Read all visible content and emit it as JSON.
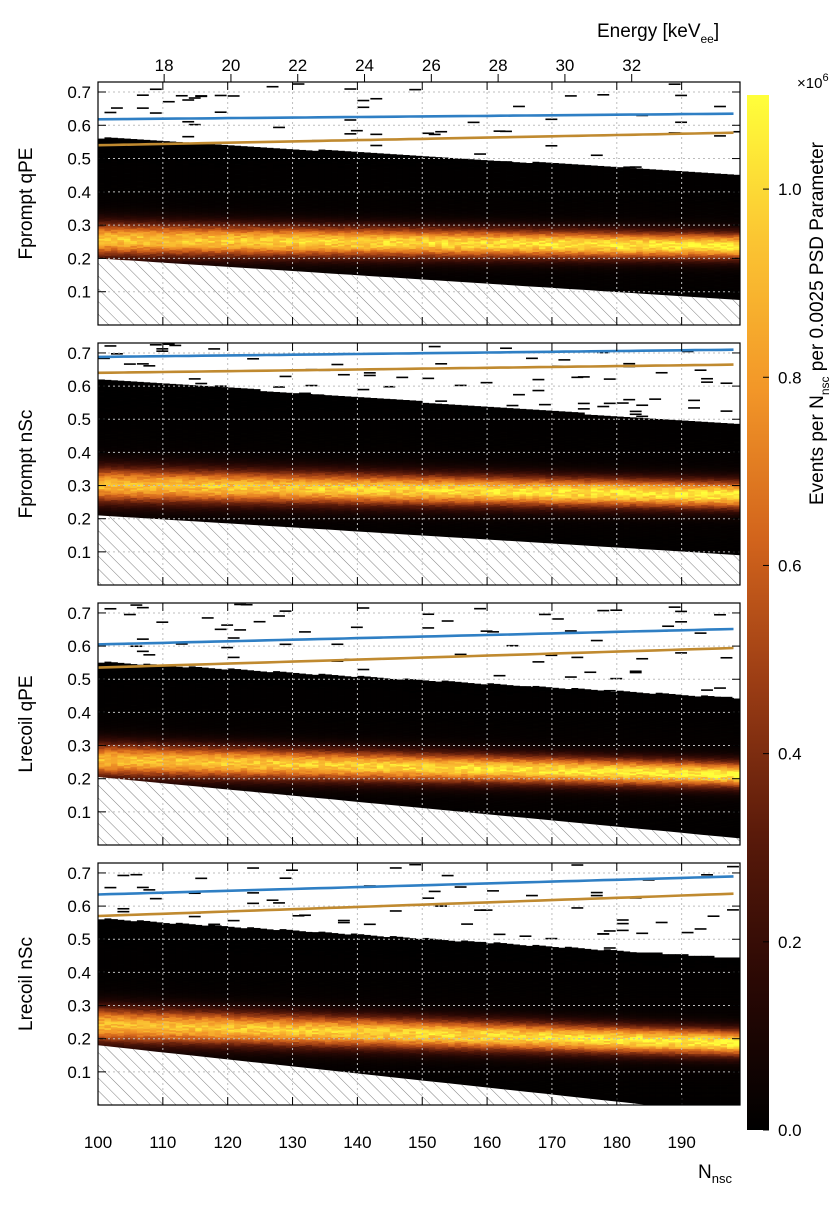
{
  "chart_data": {
    "type": "heatmap",
    "xlabel_main": "N",
    "xlabel_sub": "nsc",
    "xlim": [
      100,
      199
    ],
    "xticks": [
      100,
      110,
      120,
      130,
      140,
      150,
      160,
      170,
      180,
      190
    ],
    "top_axis": {
      "label_main": "Energy [keV",
      "label_sub": "ee",
      "label_end": "]",
      "ticks": [
        18,
        20,
        22,
        24,
        26,
        28,
        30,
        32
      ],
      "tick_positions_nsc": [
        110.2,
        120.5,
        130.8,
        141.1,
        151.4,
        161.7,
        172.0,
        182.3
      ]
    },
    "yticks": [
      0.1,
      0.2,
      0.3,
      0.4,
      0.5,
      0.6,
      0.7
    ],
    "ylim": [
      0,
      0.73
    ],
    "colorbar": {
      "label_main": "Events per N",
      "label_sub": "nsc",
      "label_end": " per 0.0025 PSD Parameter",
      "multiplier": "×10",
      "exponent": "6",
      "range": [
        0,
        1.1
      ],
      "ticks": [
        0.0,
        0.2,
        0.4,
        0.6,
        0.8,
        1.0
      ],
      "tick_labels": [
        "0.0",
        "0.2",
        "0.4",
        "0.6",
        "0.8",
        "1.0"
      ],
      "colors": [
        "#000000",
        "#2a0804",
        "#5a1a0a",
        "#9a3c14",
        "#d2641c",
        "#f29628",
        "#fbc432",
        "#ffff3a"
      ]
    },
    "series_colors": {
      "upper_cut": "#2f7fc4",
      "lower_cut": "#c08a30",
      "hatch": "#808080"
    },
    "panels": [
      {
        "ylabel": "Fprompt qPE",
        "band_center": [
          0.255,
          0.235
        ],
        "band_sigma": [
          0.034,
          0.026
        ],
        "peak": [
          0.82,
          0.95
        ],
        "upper_cut": [
          0.618,
          0.635
        ],
        "lower_cut": [
          0.54,
          0.578
        ],
        "data_top": [
          0.56,
          0.45
        ],
        "hatch_top": [
          0.2,
          0.075
        ]
      },
      {
        "ylabel": "Fprompt nSc",
        "band_center": [
          0.3,
          0.27
        ],
        "band_sigma": [
          0.036,
          0.028
        ],
        "peak": [
          0.8,
          0.95
        ],
        "upper_cut": [
          0.688,
          0.71
        ],
        "lower_cut": [
          0.64,
          0.665
        ],
        "data_top": [
          0.62,
          0.48
        ],
        "hatch_top": [
          0.21,
          0.09
        ]
      },
      {
        "ylabel": "Lrecoil qPE",
        "band_center": [
          0.255,
          0.21
        ],
        "band_sigma": [
          0.034,
          0.026
        ],
        "peak": [
          0.8,
          0.95
        ],
        "upper_cut": [
          0.605,
          0.652
        ],
        "lower_cut": [
          0.535,
          0.595
        ],
        "data_top": [
          0.55,
          0.44
        ],
        "hatch_top": [
          0.205,
          0.02
        ]
      },
      {
        "ylabel": "Lrecoil nSc",
        "band_center": [
          0.24,
          0.185
        ],
        "band_sigma": [
          0.036,
          0.027
        ],
        "peak": [
          0.8,
          0.95
        ],
        "upper_cut": [
          0.635,
          0.69
        ],
        "lower_cut": [
          0.57,
          0.638
        ],
        "data_top": [
          0.56,
          0.44
        ],
        "hatch_top": [
          0.18,
          -0.03
        ]
      }
    ]
  }
}
